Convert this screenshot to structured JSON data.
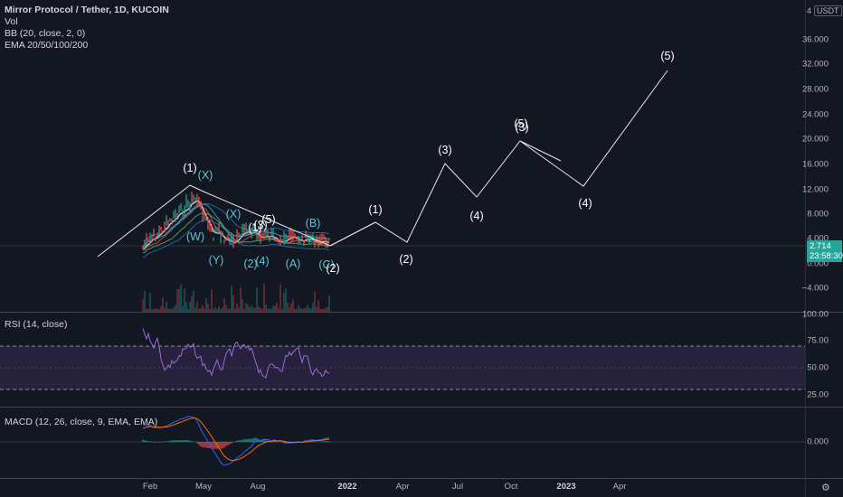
{
  "legend": {
    "title": "Mirror Protocol / Tether, 1D, KUCOIN",
    "vol": "Vol",
    "bb": "BB (20, close, 2, 0)",
    "ema": "EMA 20/50/100/200"
  },
  "rsi": {
    "label": "RSI (14, close)"
  },
  "macd": {
    "label": "MACD (12, 26, close, 9, EMA, EMA)"
  },
  "price_axis": {
    "unit": "USDT",
    "unit_mark": "4",
    "ticks": [
      "36.000",
      "32.000",
      "28.000",
      "24.000",
      "20.000",
      "16.000",
      "12.000",
      "8.000",
      "4.000",
      "0.000",
      "−4.000"
    ],
    "last_price": "2.714",
    "countdown": "23:58:30"
  },
  "rsi_axis": {
    "ticks": [
      "100.00",
      "75.00",
      "50.00",
      "25.00"
    ]
  },
  "macd_axis": {
    "ticks": [
      "0.000"
    ]
  },
  "time_axis": {
    "ticks": [
      {
        "label": "Feb",
        "bold": false
      },
      {
        "label": "May",
        "bold": false
      },
      {
        "label": "Aug",
        "bold": false
      },
      {
        "label": "2022",
        "bold": true
      },
      {
        "label": "Apr",
        "bold": false
      },
      {
        "label": "Jul",
        "bold": false
      },
      {
        "label": "Oct",
        "bold": false
      },
      {
        "label": "2023",
        "bold": true
      },
      {
        "label": "Apr",
        "bold": false
      }
    ]
  },
  "wave_labels": {
    "w1_top": "(1)",
    "x_top": "(X)",
    "w_label": "(W)",
    "x_mid": "(X)",
    "y_label": "(Y)",
    "w1_small": "(1)",
    "w3_small": "(3)",
    "w5_small": "(5)",
    "w2_small": "(2)",
    "w4_small": "(4)",
    "a_label": "(A)",
    "b_label": "(B)",
    "c_label": "(C)",
    "w2_cur": "(2)",
    "f1": "(1)",
    "f2": "(2)",
    "f3": "(3)",
    "f4": "(4)",
    "f5a": "(5)",
    "f3b": "(3)",
    "f4b": "(4)",
    "f5": "(5)"
  },
  "colors": {
    "background": "#131722",
    "accent_teal": "#26a69a",
    "rsi_band": "#7e57c2",
    "rsi_line": "#9c6bd6",
    "macd_line": "#2962ff",
    "signal_line": "#ff6d00",
    "wave_white": "#ffffff",
    "wave_cyan": "#5fc4d6"
  }
}
